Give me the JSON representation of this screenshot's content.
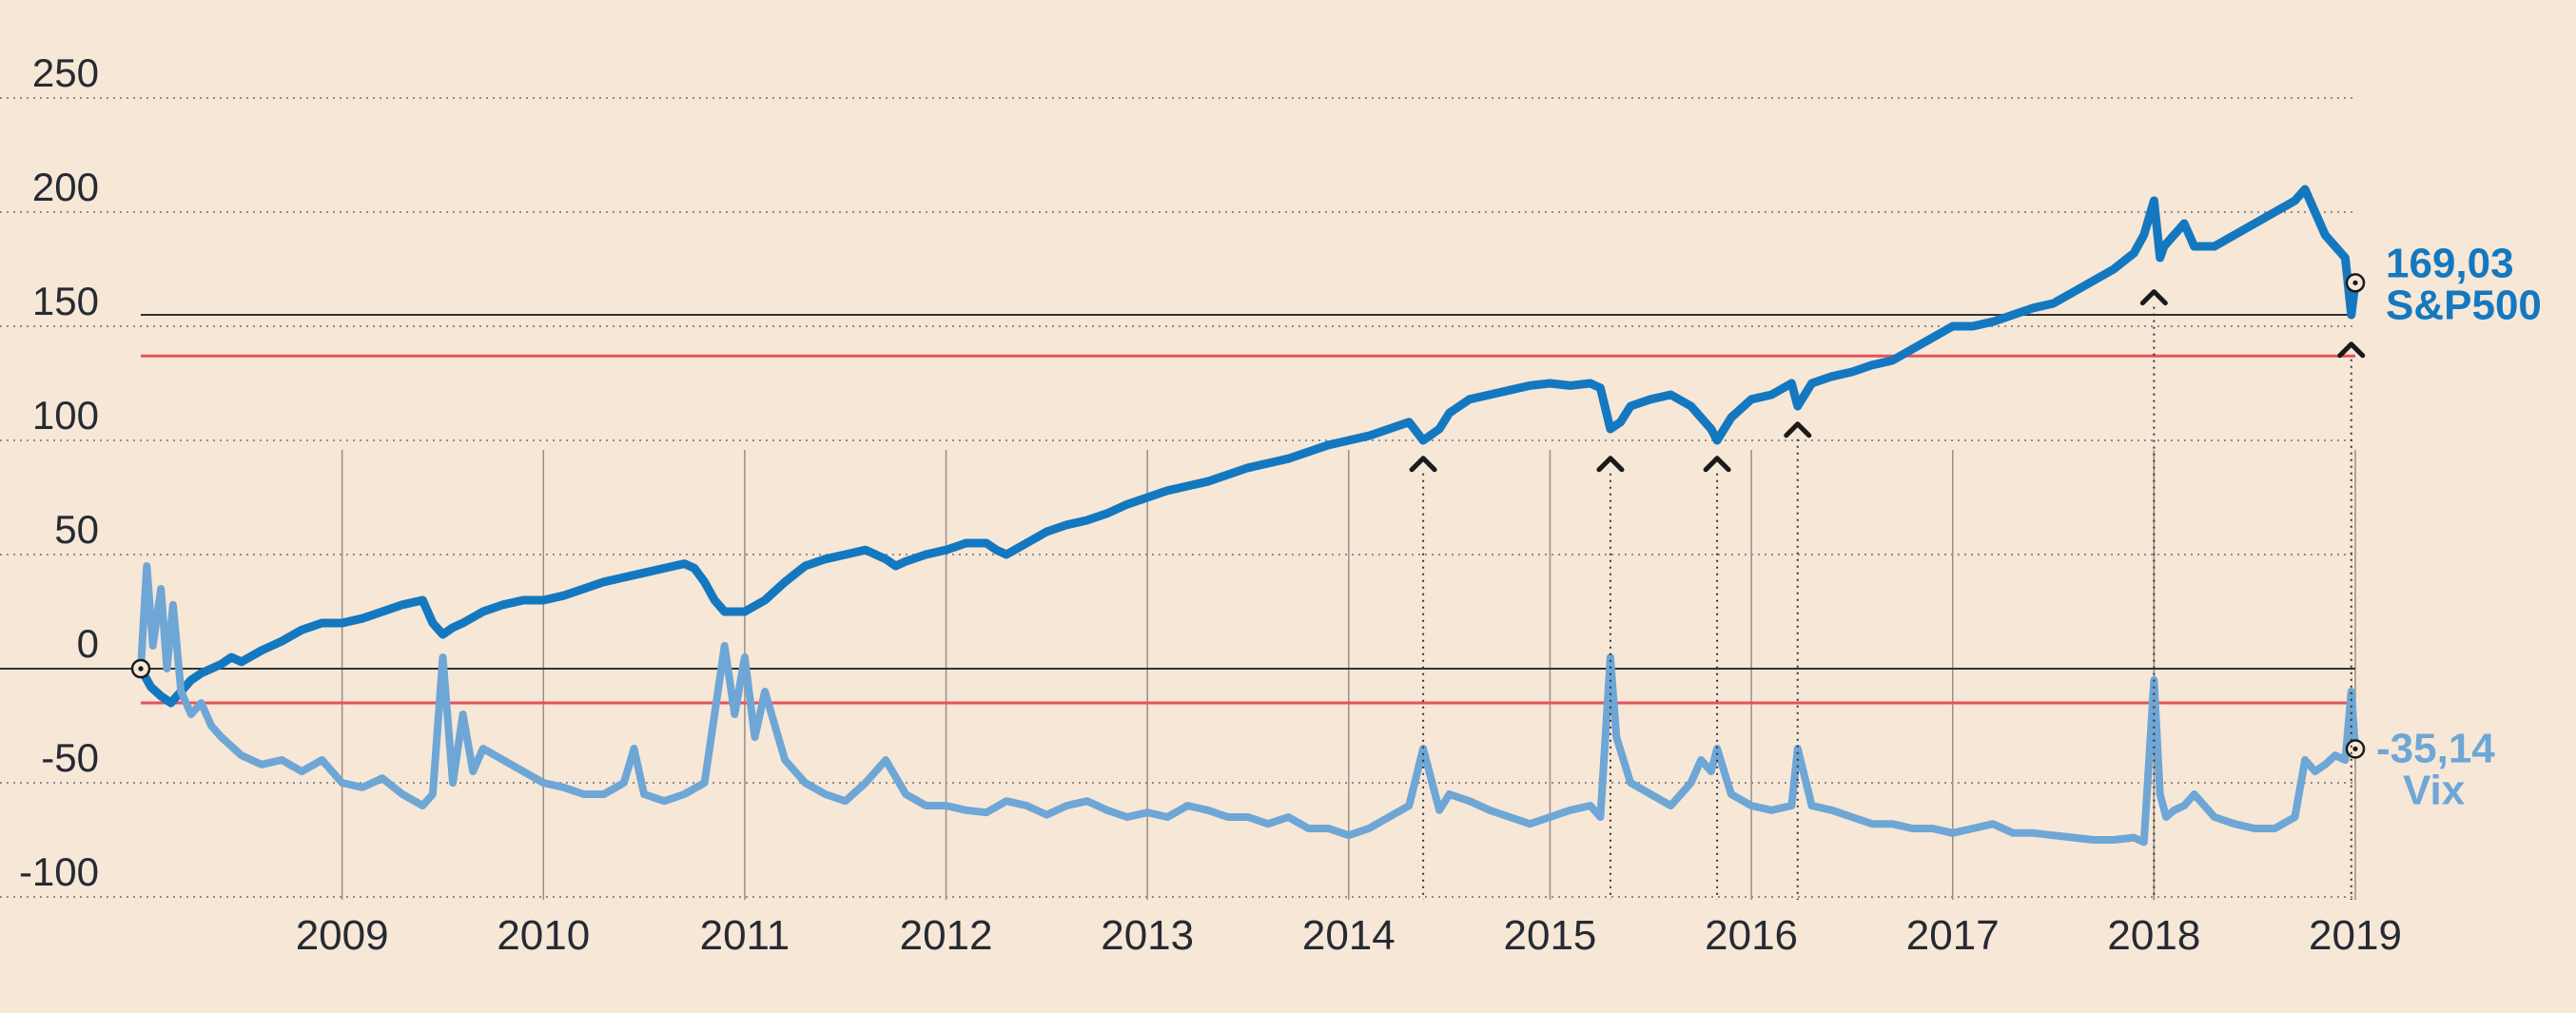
{
  "chart_data": {
    "type": "line",
    "title": "",
    "xlabel": "",
    "ylabel": "",
    "ylim": [
      -100,
      250
    ],
    "xlim": [
      2008.0,
      2019.0
    ],
    "y_ticks": [
      "250",
      "200",
      "150",
      "100",
      "50",
      "0",
      "-50",
      "-100"
    ],
    "y_tick_values": [
      250,
      200,
      150,
      100,
      50,
      0,
      -50,
      -100
    ],
    "x_ticks": [
      "2009",
      "2010",
      "2011",
      "2012",
      "2013",
      "2014",
      "2015",
      "2016",
      "2017",
      "2018",
      "2019"
    ],
    "x_tick_values": [
      2009,
      2010,
      2011,
      2012,
      2013,
      2014,
      2015,
      2016,
      2017,
      2018,
      2019
    ],
    "grid": true,
    "reference_lines": [
      {
        "y": 155,
        "color": "#333333"
      },
      {
        "y": 0,
        "color": "#333333"
      },
      {
        "y": 137,
        "color": "#e5525b"
      },
      {
        "y": -15,
        "color": "#e5525b"
      }
    ],
    "markers": [
      {
        "x": 2014.37,
        "y": 93
      },
      {
        "x": 2015.3,
        "y": 93
      },
      {
        "x": 2015.83,
        "y": 93
      },
      {
        "x": 2016.23,
        "y": 108
      },
      {
        "x": 2018.0,
        "y": 166
      },
      {
        "x": 2018.98,
        "y": 143
      }
    ],
    "series": [
      {
        "name": "S&P500",
        "color": "#1478c0",
        "end_value": "169,03",
        "x": [
          2008.0,
          2008.05,
          2008.1,
          2008.15,
          2008.2,
          2008.25,
          2008.3,
          2008.35,
          2008.4,
          2008.45,
          2008.5,
          2008.6,
          2008.7,
          2008.8,
          2008.9,
          2009.0,
          2009.1,
          2009.2,
          2009.3,
          2009.4,
          2009.45,
          2009.5,
          2009.55,
          2009.6,
          2009.7,
          2009.8,
          2009.9,
          2010.0,
          2010.1,
          2010.2,
          2010.3,
          2010.4,
          2010.5,
          2010.6,
          2010.7,
          2010.75,
          2010.8,
          2010.85,
          2010.9,
          2011.0,
          2011.1,
          2011.2,
          2011.3,
          2011.4,
          2011.5,
          2011.6,
          2011.7,
          2011.75,
          2011.8,
          2011.9,
          2012.0,
          2012.1,
          2012.2,
          2012.25,
          2012.3,
          2012.4,
          2012.5,
          2012.6,
          2012.7,
          2012.8,
          2012.9,
          2013.0,
          2013.1,
          2013.2,
          2013.3,
          2013.4,
          2013.5,
          2013.6,
          2013.7,
          2013.8,
          2013.9,
          2014.0,
          2014.1,
          2014.2,
          2014.3,
          2014.37,
          2014.45,
          2014.5,
          2014.6,
          2014.7,
          2014.8,
          2014.9,
          2015.0,
          2015.1,
          2015.2,
          2015.25,
          2015.3,
          2015.35,
          2015.4,
          2015.5,
          2015.6,
          2015.7,
          2015.75,
          2015.8,
          2015.83,
          2015.9,
          2016.0,
          2016.1,
          2016.2,
          2016.23,
          2016.3,
          2016.4,
          2016.5,
          2016.6,
          2016.7,
          2016.8,
          2016.9,
          2017.0,
          2017.1,
          2017.2,
          2017.3,
          2017.4,
          2017.5,
          2017.6,
          2017.7,
          2017.8,
          2017.9,
          2017.95,
          2018.0,
          2018.03,
          2018.05,
          2018.1,
          2018.15,
          2018.2,
          2018.3,
          2018.4,
          2018.5,
          2018.6,
          2018.7,
          2018.75,
          2018.8,
          2018.85,
          2018.9,
          2018.95,
          2018.98,
          2019.0
        ],
        "values": [
          0,
          -8,
          -12,
          -15,
          -10,
          -5,
          -2,
          0,
          2,
          5,
          3,
          8,
          12,
          17,
          20,
          20,
          22,
          25,
          28,
          30,
          20,
          15,
          18,
          20,
          25,
          28,
          30,
          30,
          32,
          35,
          38,
          40,
          42,
          44,
          46,
          44,
          38,
          30,
          25,
          25,
          30,
          38,
          45,
          48,
          50,
          52,
          48,
          45,
          47,
          50,
          52,
          55,
          55,
          52,
          50,
          55,
          60,
          63,
          65,
          68,
          72,
          75,
          78,
          80,
          82,
          85,
          88,
          90,
          92,
          95,
          98,
          100,
          102,
          105,
          108,
          100,
          105,
          112,
          118,
          120,
          122,
          124,
          125,
          124,
          125,
          123,
          105,
          108,
          115,
          118,
          120,
          115,
          110,
          105,
          100,
          110,
          118,
          120,
          125,
          115,
          125,
          128,
          130,
          133,
          135,
          140,
          145,
          150,
          150,
          152,
          155,
          158,
          160,
          165,
          170,
          175,
          182,
          190,
          205,
          180,
          185,
          190,
          195,
          185,
          185,
          190,
          195,
          200,
          205,
          210,
          200,
          190,
          185,
          180,
          155,
          169.03
        ]
      },
      {
        "name": "Vix",
        "color": "#6ea6d6",
        "end_value": "-35,14",
        "x": [
          2008.0,
          2008.03,
          2008.06,
          2008.1,
          2008.13,
          2008.16,
          2008.2,
          2008.25,
          2008.3,
          2008.35,
          2008.4,
          2008.5,
          2008.6,
          2008.7,
          2008.8,
          2008.9,
          2009.0,
          2009.1,
          2009.2,
          2009.3,
          2009.4,
          2009.45,
          2009.5,
          2009.55,
          2009.6,
          2009.65,
          2009.7,
          2009.8,
          2009.9,
          2010.0,
          2010.1,
          2010.2,
          2010.3,
          2010.4,
          2010.45,
          2010.5,
          2010.6,
          2010.7,
          2010.8,
          2010.85,
          2010.9,
          2010.95,
          2011.0,
          2011.05,
          2011.1,
          2011.2,
          2011.3,
          2011.4,
          2011.5,
          2011.6,
          2011.7,
          2011.8,
          2011.9,
          2012.0,
          2012.1,
          2012.2,
          2012.3,
          2012.4,
          2012.5,
          2012.6,
          2012.7,
          2012.8,
          2012.9,
          2013.0,
          2013.1,
          2013.2,
          2013.3,
          2013.4,
          2013.5,
          2013.6,
          2013.7,
          2013.8,
          2013.9,
          2014.0,
          2014.1,
          2014.2,
          2014.3,
          2014.37,
          2014.45,
          2014.5,
          2014.6,
          2014.7,
          2014.8,
          2014.9,
          2015.0,
          2015.1,
          2015.2,
          2015.25,
          2015.3,
          2015.33,
          2015.4,
          2015.5,
          2015.6,
          2015.7,
          2015.75,
          2015.8,
          2015.83,
          2015.9,
          2016.0,
          2016.1,
          2016.2,
          2016.23,
          2016.3,
          2016.4,
          2016.5,
          2016.6,
          2016.7,
          2016.8,
          2016.9,
          2017.0,
          2017.1,
          2017.2,
          2017.3,
          2017.4,
          2017.5,
          2017.6,
          2017.7,
          2017.8,
          2017.9,
          2017.95,
          2018.0,
          2018.03,
          2018.06,
          2018.1,
          2018.15,
          2018.2,
          2018.3,
          2018.4,
          2018.5,
          2018.6,
          2018.7,
          2018.75,
          2018.8,
          2018.85,
          2018.9,
          2018.95,
          2018.98,
          2019.0
        ],
        "values": [
          0,
          45,
          10,
          35,
          0,
          28,
          -10,
          -20,
          -15,
          -25,
          -30,
          -38,
          -42,
          -40,
          -45,
          -40,
          -50,
          -52,
          -48,
          -55,
          -60,
          -55,
          5,
          -50,
          -20,
          -45,
          -35,
          -40,
          -45,
          -50,
          -52,
          -55,
          -55,
          -50,
          -35,
          -55,
          -58,
          -55,
          -50,
          -20,
          10,
          -20,
          5,
          -30,
          -10,
          -40,
          -50,
          -55,
          -58,
          -50,
          -40,
          -55,
          -60,
          -60,
          -62,
          -63,
          -58,
          -60,
          -64,
          -60,
          -58,
          -62,
          -65,
          -63,
          -65,
          -60,
          -62,
          -65,
          -65,
          -68,
          -65,
          -70,
          -70,
          -73,
          -70,
          -65,
          -60,
          -35,
          -62,
          -55,
          -58,
          -62,
          -65,
          -68,
          -65,
          -62,
          -60,
          -65,
          5,
          -30,
          -50,
          -55,
          -60,
          -50,
          -40,
          -45,
          -35,
          -55,
          -60,
          -62,
          -60,
          -35,
          -60,
          -62,
          -65,
          -68,
          -68,
          -70,
          -70,
          -72,
          -70,
          -68,
          -72,
          -72,
          -73,
          -74,
          -75,
          -75,
          -74,
          -76,
          -5,
          -55,
          -65,
          -62,
          -60,
          -55,
          -65,
          -68,
          -70,
          -70,
          -65,
          -40,
          -45,
          -42,
          -38,
          -40,
          -10,
          -35.14
        ]
      }
    ]
  }
}
